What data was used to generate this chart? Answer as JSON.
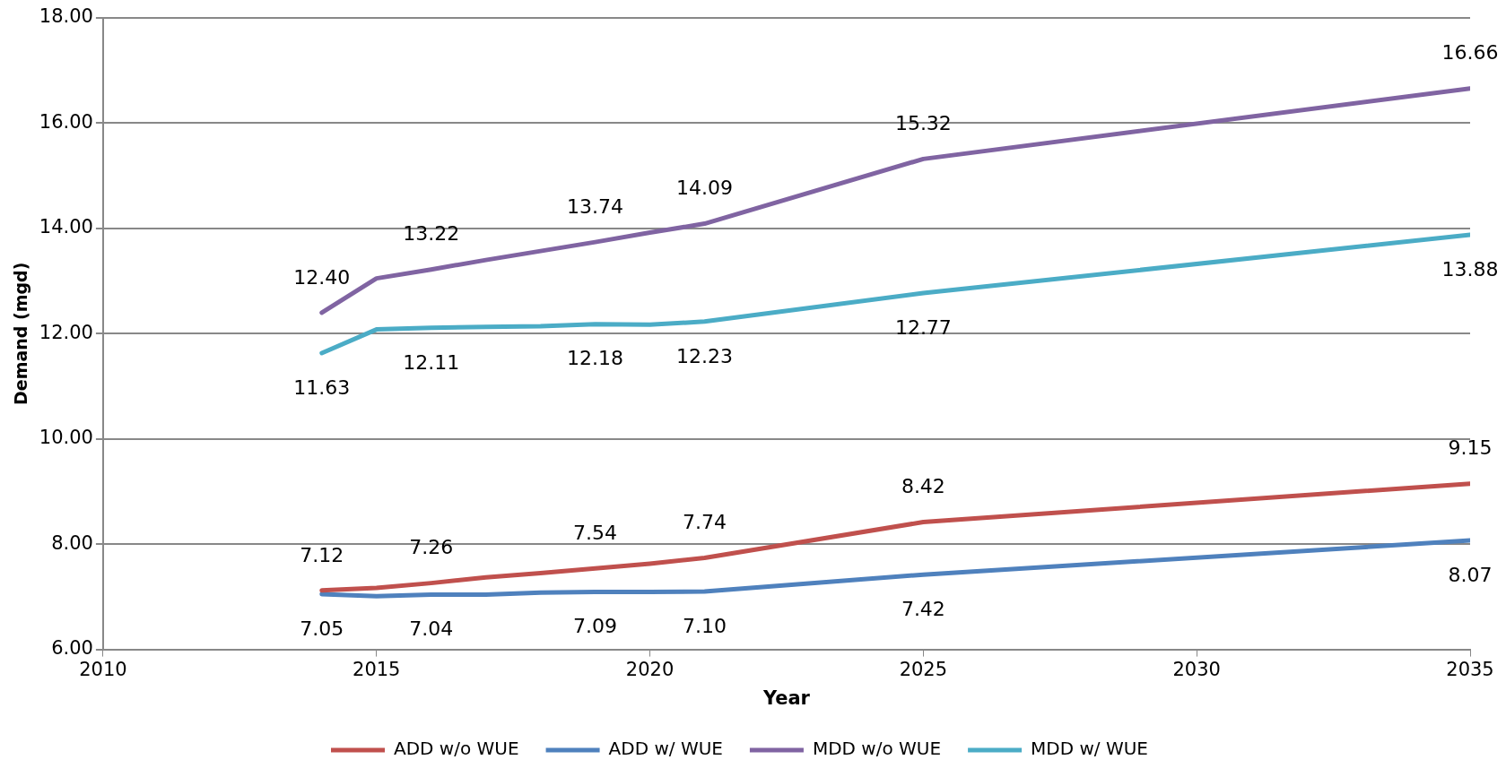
{
  "chart_data": {
    "type": "line",
    "xlabel": "Year",
    "ylabel": "Demand (mgd)",
    "x": [
      2014,
      2015,
      2016,
      2017,
      2018,
      2019,
      2020,
      2021,
      2025,
      2035
    ],
    "xlim": [
      2010,
      2035
    ],
    "xticks": [
      2010,
      2015,
      2020,
      2025,
      2030,
      2035
    ],
    "ylim": [
      6,
      18
    ],
    "yticks": [
      {
        "value": 6,
        "label": "6.00"
      },
      {
        "value": 8,
        "label": "8.00"
      },
      {
        "value": 10,
        "label": "10.00"
      },
      {
        "value": 12,
        "label": "12.00"
      },
      {
        "value": 14,
        "label": "14.00"
      },
      {
        "value": 16,
        "label": "16.00"
      },
      {
        "value": 18,
        "label": "18.00"
      }
    ],
    "grid": "y",
    "legend": "bottom",
    "marker": "none",
    "line_style": "solid",
    "series": [
      {
        "name": "ADD w/o WUE",
        "color": "#c0504d",
        "values": [
          7.12,
          7.17,
          7.26,
          7.37,
          7.45,
          7.54,
          7.63,
          7.74,
          8.42,
          9.15
        ],
        "value_labels": [
          "7.12",
          null,
          "7.26",
          null,
          null,
          "7.54",
          null,
          "7.74",
          "8.42",
          "9.15"
        ]
      },
      {
        "name": "ADD w/ WUE",
        "color": "#4f81bd",
        "values": [
          7.05,
          7.01,
          7.04,
          7.04,
          7.08,
          7.09,
          7.09,
          7.1,
          7.42,
          8.07
        ],
        "value_labels": [
          "7.05",
          null,
          "7.04",
          null,
          null,
          "7.09",
          null,
          "7.10",
          "7.42",
          "8.07"
        ]
      },
      {
        "name": "MDD w/o WUE",
        "color": "#8064a2",
        "values": [
          12.4,
          13.05,
          13.22,
          13.4,
          13.57,
          13.74,
          13.92,
          14.09,
          15.32,
          16.66
        ],
        "value_labels": [
          "12.40",
          null,
          "13.22",
          null,
          null,
          "13.74",
          null,
          "14.09",
          "15.32",
          "16.66"
        ]
      },
      {
        "name": "MDD w/ WUE",
        "color": "#4bacc6",
        "values": [
          11.63,
          12.08,
          12.11,
          12.13,
          12.14,
          12.18,
          12.17,
          12.23,
          12.77,
          13.88
        ],
        "value_labels": [
          "11.63",
          null,
          "12.11",
          null,
          null,
          "12.18",
          null,
          "12.23",
          "12.77",
          "13.88"
        ]
      }
    ]
  }
}
